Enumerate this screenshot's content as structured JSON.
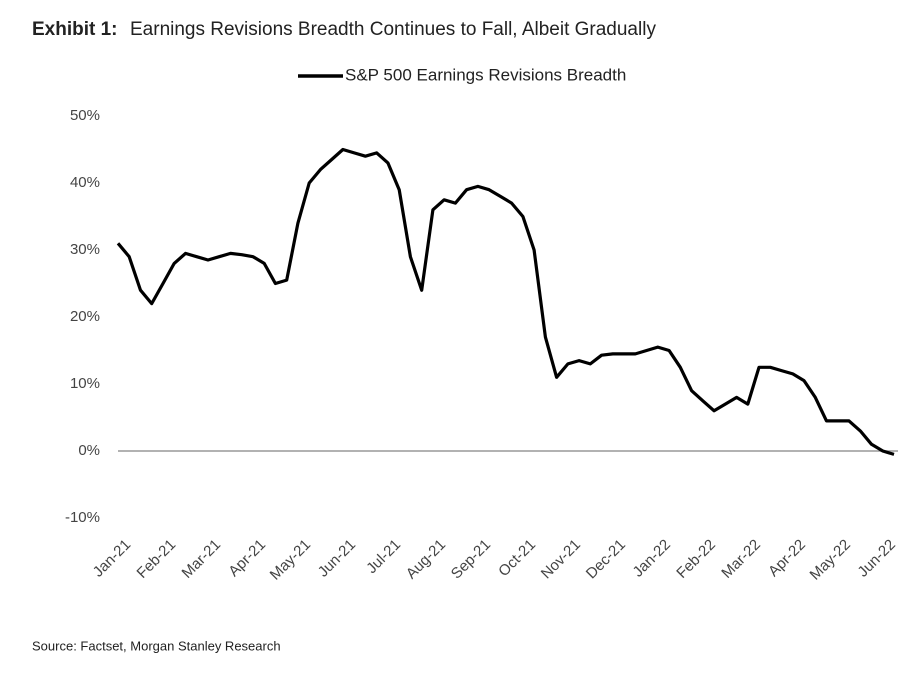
{
  "chart_data": {
    "type": "line",
    "title_label": "Exhibit 1:",
    "title": "Earnings Revisions Breadth Continues to Fall, Albeit Gradually",
    "source": "Source: Factset, Morgan Stanley Research",
    "categories": [
      "Jan-21",
      null,
      null,
      null,
      "Feb-21",
      null,
      null,
      null,
      "Mar-21",
      null,
      null,
      null,
      "Apr-21",
      null,
      null,
      null,
      "May-21",
      null,
      null,
      null,
      "Jun-21",
      null,
      null,
      null,
      "Jul-21",
      null,
      null,
      null,
      "Aug-21",
      null,
      null,
      null,
      "Sep-21",
      null,
      null,
      null,
      "Oct-21",
      null,
      null,
      null,
      "Nov-21",
      null,
      null,
      null,
      "Dec-21",
      null,
      null,
      null,
      "Jan-22",
      null,
      null,
      null,
      "Feb-22",
      null,
      null,
      null,
      "Mar-22",
      null,
      null,
      null,
      "Apr-22",
      null,
      null,
      null,
      "May-22",
      null,
      null,
      null,
      "Jun-22",
      null
    ],
    "series": [
      {
        "name": "S&P 500 Earnings Revisions Breadth",
        "color": "#000000",
        "values": [
          31,
          29,
          24,
          22,
          25,
          28,
          29.5,
          29,
          28.5,
          29,
          29.5,
          29.3,
          29,
          28,
          25,
          25.5,
          34,
          40,
          42,
          43.5,
          45,
          44.5,
          44,
          44.5,
          43,
          39,
          29,
          24,
          36,
          37.5,
          37,
          39,
          39.5,
          39,
          38,
          37,
          35,
          30,
          17,
          11,
          13,
          13.5,
          13,
          14.3,
          14.5,
          14.5,
          14.5,
          15,
          15.5,
          15,
          12.5,
          9,
          7.5,
          6,
          7,
          8,
          7,
          12.5,
          12.5,
          12,
          11.5,
          10.5,
          8,
          4.5,
          4.5,
          4.5,
          3,
          1,
          0,
          -0.5
        ]
      }
    ],
    "ylim": [
      -10,
      50
    ],
    "yticks": [
      {
        "value": -10,
        "label": "-10%"
      },
      {
        "value": 0,
        "label": "0%"
      },
      {
        "value": 10,
        "label": "10%"
      },
      {
        "value": 20,
        "label": "20%"
      },
      {
        "value": 30,
        "label": "30%"
      },
      {
        "value": 40,
        "label": "40%"
      },
      {
        "value": 50,
        "label": "50%"
      }
    ],
    "legend": "top",
    "zero_line": true
  }
}
